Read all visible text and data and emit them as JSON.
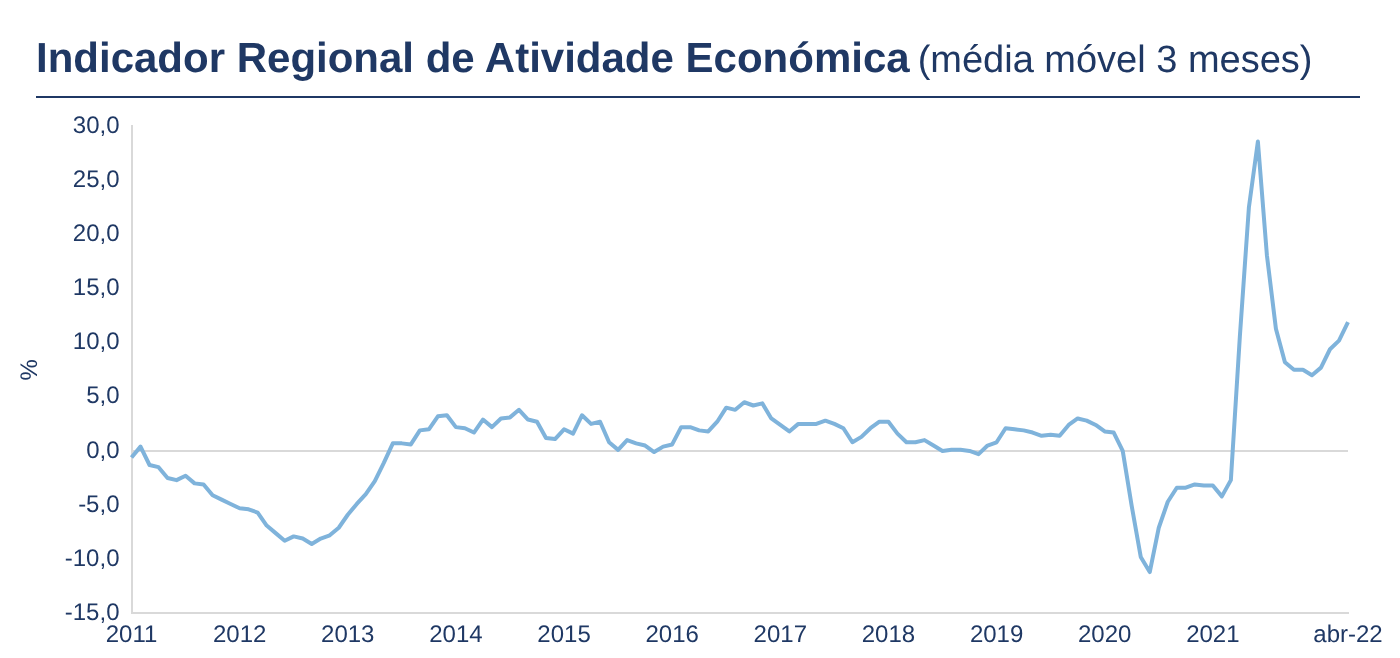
{
  "chart_data": {
    "type": "line",
    "title": "Indicador Regional de Atividade Económica",
    "subtitle": "(média móvel 3 meses)",
    "ylabel": "%",
    "categories": [
      "2011",
      null,
      null,
      null,
      null,
      null,
      null,
      null,
      null,
      null,
      null,
      null,
      "2012",
      null,
      null,
      null,
      null,
      null,
      null,
      null,
      null,
      null,
      null,
      null,
      "2013",
      null,
      null,
      null,
      null,
      null,
      null,
      null,
      null,
      null,
      null,
      null,
      "2014",
      null,
      null,
      null,
      null,
      null,
      null,
      null,
      null,
      null,
      null,
      null,
      "2015",
      null,
      null,
      null,
      null,
      null,
      null,
      null,
      null,
      null,
      null,
      null,
      "2016",
      null,
      null,
      null,
      null,
      null,
      null,
      null,
      null,
      null,
      null,
      null,
      "2017",
      null,
      null,
      null,
      null,
      null,
      null,
      null,
      null,
      null,
      null,
      null,
      "2018",
      null,
      null,
      null,
      null,
      null,
      null,
      null,
      null,
      null,
      null,
      null,
      "2019",
      null,
      null,
      null,
      null,
      null,
      null,
      null,
      null,
      null,
      null,
      null,
      "2020",
      null,
      null,
      null,
      null,
      null,
      null,
      null,
      null,
      null,
      null,
      null,
      "2021",
      null,
      null,
      null,
      null,
      null,
      null,
      null,
      null,
      null,
      null,
      null,
      null,
      null,
      null,
      "abr-22"
    ],
    "series": [
      {
        "color": "#7fb3db",
        "values": [
          -0.6,
          0.4,
          -1.3,
          -1.5,
          -2.5,
          -2.7,
          -2.3,
          -3.0,
          -3.1,
          -4.1,
          -4.5,
          -4.9,
          -5.3,
          -5.4,
          -5.7,
          -6.9,
          -7.6,
          -8.3,
          -7.9,
          -8.1,
          -8.6,
          -8.1,
          -7.8,
          -7.1,
          -5.9,
          -4.9,
          -4.0,
          -2.8,
          -1.1,
          0.7,
          0.7,
          0.6,
          1.9,
          2.0,
          3.2,
          3.3,
          2.2,
          2.1,
          1.7,
          2.9,
          2.2,
          3.0,
          3.1,
          3.8,
          2.9,
          2.7,
          1.2,
          1.1,
          2.0,
          1.6,
          3.3,
          2.5,
          2.7,
          0.8,
          0.1,
          1.0,
          0.7,
          0.5,
          -0.1,
          0.4,
          0.6,
          2.2,
          2.2,
          1.9,
          1.8,
          2.7,
          4.0,
          3.8,
          4.5,
          4.2,
          4.4,
          3.0,
          2.4,
          1.8,
          2.5,
          2.5,
          2.5,
          2.8,
          2.5,
          2.1,
          0.8,
          1.3,
          2.1,
          2.7,
          2.7,
          1.6,
          0.8,
          0.8,
          1.0,
          0.5,
          0.0,
          0.1,
          0.1,
          0.0,
          -0.3,
          0.5,
          0.8,
          2.1,
          2.0,
          1.9,
          1.7,
          1.4,
          1.5,
          1.4,
          2.4,
          3.0,
          2.8,
          2.4,
          1.8,
          1.7,
          0.0,
          -5.1,
          -9.8,
          -11.2,
          -7.1,
          -4.7,
          -3.4,
          -3.4,
          -3.1,
          -3.2,
          -3.2,
          -4.2,
          -2.7,
          10.6,
          22.5,
          28.6,
          18.1,
          11.3,
          8.2,
          7.5,
          7.5,
          7.0,
          7.7,
          9.4,
          10.2,
          11.9
        ]
      }
    ],
    "ylim": [
      -15,
      30
    ],
    "yticks": [
      {
        "value": -15,
        "label": "-15,0"
      },
      {
        "value": -10,
        "label": "-10,0"
      },
      {
        "value": -5,
        "label": "-5,0"
      },
      {
        "value": 0,
        "label": "0,0"
      },
      {
        "value": 5,
        "label": "5,0"
      },
      {
        "value": 10,
        "label": "10,0"
      },
      {
        "value": 15,
        "label": "15,0"
      },
      {
        "value": 20,
        "label": "20,0"
      },
      {
        "value": 25,
        "label": "25,0"
      },
      {
        "value": 30,
        "label": "30,0"
      }
    ],
    "ref_lines": [
      {
        "axis": "y",
        "value": 0,
        "color": "#d9d9d9"
      }
    ],
    "grid": false,
    "legend": false,
    "marker": "none",
    "line_style": "solid"
  }
}
